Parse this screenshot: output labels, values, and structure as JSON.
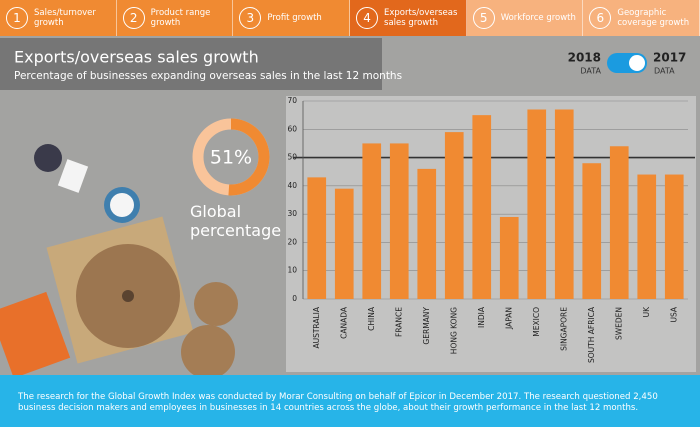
{
  "tabs": [
    {
      "number": "1",
      "label": "Sales/turnover growth"
    },
    {
      "number": "2",
      "label": "Product range growth"
    },
    {
      "number": "3",
      "label": "Profit growth"
    },
    {
      "number": "4",
      "label": "Exports/overseas sales growth"
    },
    {
      "number": "5",
      "label": "Workforce growth"
    },
    {
      "number": "6",
      "label": "Geographic coverage growth"
    }
  ],
  "header": {
    "title": "Exports/overseas sales growth",
    "subtitle": "Percentage of businesses expanding overseas sales in the last 12 months"
  },
  "toggle": {
    "left_year": "2018",
    "left_caption": "DATA",
    "right_year": "2017",
    "right_caption": "DATA"
  },
  "donut": {
    "value": 51,
    "value_label": "51%",
    "caption": "Global percentage"
  },
  "chart_data": {
    "type": "bar",
    "categories": [
      "AUSTRALIA",
      "CANADA",
      "CHINA",
      "FRANCE",
      "GERMANY",
      "HONG KONG",
      "INDIA",
      "JAPAN",
      "MEXICO",
      "SINGAPORE",
      "SOUTH AFRICA",
      "SWEDEN",
      "UK",
      "USA"
    ],
    "values": [
      43,
      39,
      55,
      55,
      46,
      59,
      65,
      29,
      67,
      67,
      48,
      54,
      44,
      44
    ],
    "color": "#f08a32",
    "ylim": [
      0,
      70
    ],
    "yticks": [
      0,
      10,
      20,
      30,
      40,
      50,
      60,
      70
    ],
    "grid": true,
    "reference_line": 50
  },
  "footer": {
    "text": "The research for the Global Growth Index was conducted by Morar Consulting on behalf of Epicor in December 2017. The research questioned 2,450 business decision makers and employees in businesses in 14 countries across the globe, about their growth performance in the last 12 months."
  }
}
